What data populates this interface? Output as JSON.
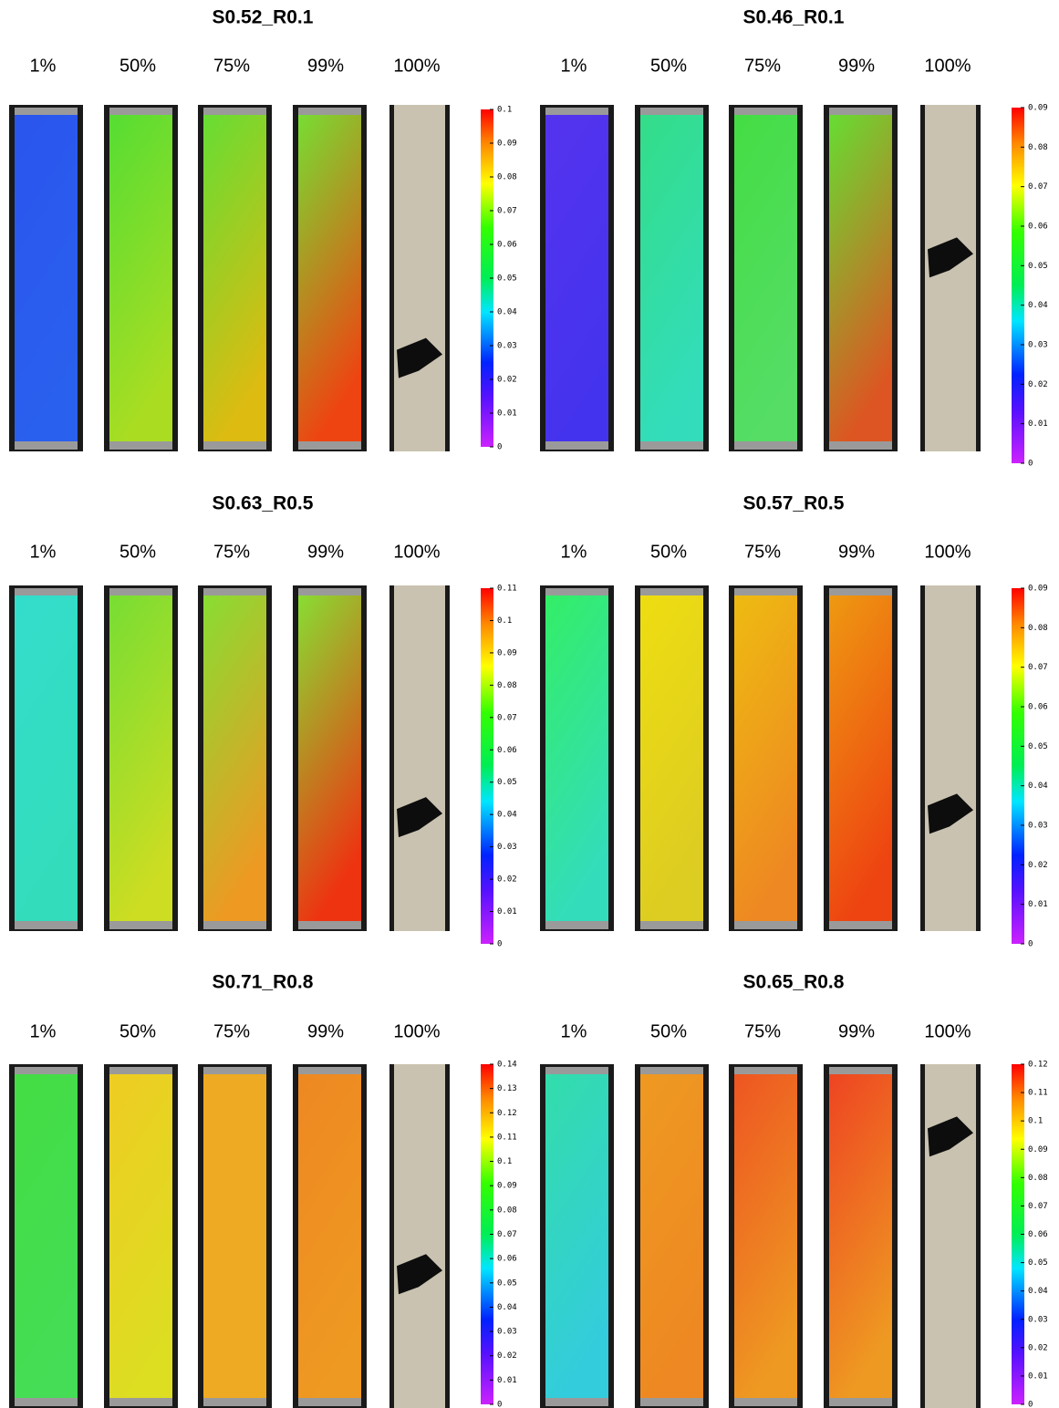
{
  "panels": [
    {
      "title": "S0.52_R0.1",
      "labels": [
        "1%",
        "50%",
        "75%",
        "99%",
        "100%"
      ],
      "colorbar_ticks": [
        0.1,
        0.09,
        0.08,
        0.07,
        0.06,
        0.05,
        0.04,
        0.03,
        0.02,
        0.01,
        0
      ]
    },
    {
      "title": "S0.46_R0.1",
      "labels": [
        "1%",
        "50%",
        "75%",
        "99%",
        "100%"
      ],
      "colorbar_ticks": [
        0.09,
        0.08,
        0.07,
        0.06,
        0.05,
        0.04,
        0.03,
        0.02,
        0.01,
        0
      ]
    },
    {
      "title": "S0.63_R0.5",
      "labels": [
        "1%",
        "50%",
        "75%",
        "99%",
        "100%"
      ],
      "colorbar_ticks": [
        0.11,
        0.1,
        0.09,
        0.08,
        0.07,
        0.06,
        0.05,
        0.04,
        0.03,
        0.02,
        0.01,
        0
      ]
    },
    {
      "title": "S0.57_R0.5",
      "labels": [
        "1%",
        "50%",
        "75%",
        "99%",
        "100%"
      ],
      "colorbar_ticks": [
        0.09,
        0.08,
        0.07,
        0.06,
        0.05,
        0.04,
        0.03,
        0.02,
        0.01,
        0
      ]
    },
    {
      "title": "S0.71_R0.8",
      "labels": [
        "1%",
        "50%",
        "75%",
        "99%",
        "100%"
      ],
      "colorbar_ticks": [
        0.14,
        0.13,
        0.12,
        0.11,
        0.1,
        0.09,
        0.08,
        0.07,
        0.06,
        0.05,
        0.04,
        0.03,
        0.02,
        0.01,
        0
      ]
    },
    {
      "title": "S0.65_R0.8",
      "labels": [
        "1%",
        "50%",
        "75%",
        "99%",
        "100%"
      ],
      "colorbar_ticks": [
        0.12,
        0.11,
        0.1,
        0.09,
        0.08,
        0.07,
        0.06,
        0.05,
        0.04,
        0.03,
        0.02,
        0.01,
        0
      ]
    }
  ]
}
